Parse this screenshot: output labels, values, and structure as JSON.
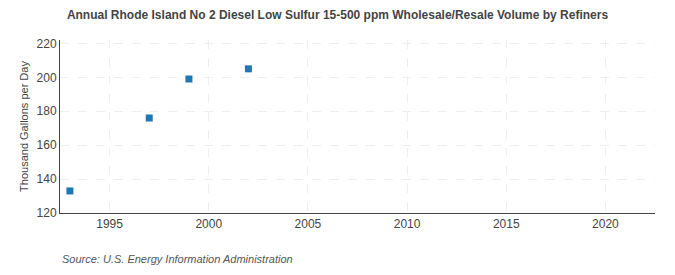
{
  "chart_data": {
    "type": "scatter",
    "title": "Annual Rhode Island No 2 Diesel Low Sulfur 15-500 ppm Wholesale/Resale Volume by Refiners",
    "ylabel": "Thousand Gallons per Day",
    "annotations": [
      "Source: U.S. Energy Information Administration"
    ],
    "x": [
      1993,
      1997,
      1999,
      2002
    ],
    "values": [
      133,
      176,
      199,
      205
    ],
    "marker": "square",
    "xlim": [
      1992.5,
      2022.5
    ],
    "xticks": [
      1995,
      2000,
      2005,
      2010,
      2015,
      2020
    ],
    "ylim": [
      120,
      222
    ],
    "yticks": [
      120,
      140,
      160,
      180,
      200,
      220
    ],
    "grid": true
  }
}
